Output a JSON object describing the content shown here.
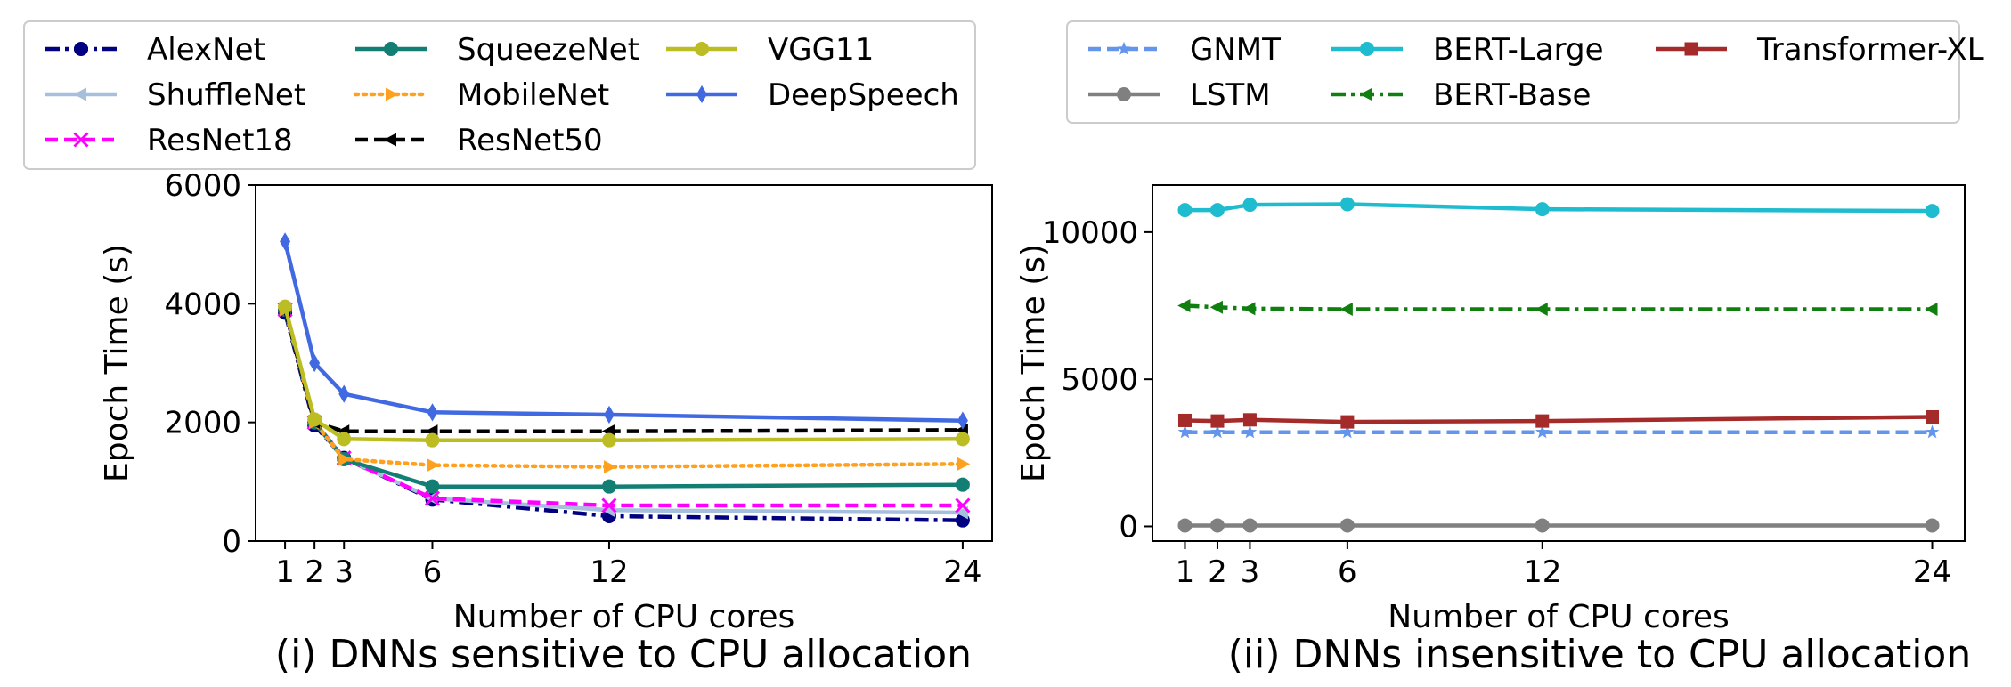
{
  "chart_data": [
    {
      "type": "line",
      "caption": "(i) DNNs sensitive to CPU allocation",
      "title": "",
      "xlabel": "Number of CPU cores",
      "ylabel": "Epoch Time (s)",
      "x": [
        1,
        2,
        3,
        6,
        12,
        24
      ],
      "xticks": [
        1,
        2,
        3,
        6,
        12,
        24
      ],
      "xlim": [
        0,
        25
      ],
      "ylim": [
        0,
        6000
      ],
      "yticks": [
        0,
        2000,
        4000,
        6000
      ],
      "grid": false,
      "legend_position": "top, above plot",
      "series": [
        {
          "name": "AlexNet",
          "color": "#000080",
          "dash": "dashdot",
          "marker": "circle",
          "values": [
            3850,
            1950,
            1400,
            700,
            420,
            350
          ]
        },
        {
          "name": "ShuffleNet",
          "color": "#a6bfdc",
          "dash": "solid",
          "marker": "triangle-left",
          "values": [
            3900,
            2000,
            1400,
            720,
            520,
            480
          ]
        },
        {
          "name": "ResNet18",
          "color": "#ff00ff",
          "dash": "dashed",
          "marker": "x",
          "values": [
            3900,
            2000,
            1400,
            720,
            600,
            600
          ]
        },
        {
          "name": "SqueezeNet",
          "color": "#137f74",
          "dash": "solid",
          "marker": "circle",
          "values": [
            3900,
            2000,
            1380,
            920,
            920,
            950
          ]
        },
        {
          "name": "MobileNet",
          "color": "#ffa01e",
          "dash": "dotted",
          "marker": "triangle-right",
          "values": [
            3900,
            2000,
            1380,
            1280,
            1250,
            1300
          ]
        },
        {
          "name": "ResNet50",
          "color": "#000000",
          "dash": "dashed",
          "marker": "triangle-left",
          "values": [
            3900,
            2000,
            1850,
            1850,
            1850,
            1870
          ]
        },
        {
          "name": "VGG11",
          "color": "#bcbd22",
          "dash": "solid",
          "marker": "circle",
          "values": [
            3950,
            2050,
            1720,
            1700,
            1700,
            1720
          ]
        },
        {
          "name": "DeepSpeech",
          "color": "#4169e1",
          "dash": "solid",
          "marker": "diamond",
          "values": [
            5050,
            3000,
            2480,
            2170,
            2130,
            2030
          ]
        }
      ]
    },
    {
      "type": "line",
      "caption": "(ii) DNNs insensitive to CPU allocation",
      "title": "",
      "xlabel": "Number of CPU cores",
      "ylabel": "Epoch Time (s)",
      "x": [
        1,
        2,
        3,
        6,
        12,
        24
      ],
      "xticks": [
        1,
        2,
        3,
        6,
        12,
        24
      ],
      "xlim": [
        0,
        25
      ],
      "ylim": [
        -500,
        11600
      ],
      "yticks": [
        0,
        5000,
        10000
      ],
      "grid": false,
      "legend_position": "top, above plot",
      "series": [
        {
          "name": "GNMT",
          "color": "#6495ed",
          "dash": "dashed",
          "marker": "star",
          "values": [
            3200,
            3200,
            3200,
            3200,
            3200,
            3200
          ]
        },
        {
          "name": "LSTM",
          "color": "#808080",
          "dash": "solid",
          "marker": "circle",
          "values": [
            30,
            30,
            30,
            30,
            30,
            30
          ]
        },
        {
          "name": "BERT-Large",
          "color": "#1fbccf",
          "dash": "solid",
          "marker": "circle",
          "values": [
            10750,
            10750,
            10930,
            10950,
            10780,
            10720
          ]
        },
        {
          "name": "BERT-Base",
          "color": "#107f10",
          "dash": "dashdot",
          "marker": "triangle-left",
          "values": [
            7500,
            7450,
            7400,
            7380,
            7380,
            7380
          ]
        },
        {
          "name": "Transformer-XL",
          "color": "#a52a2a",
          "dash": "solid",
          "marker": "square",
          "values": [
            3600,
            3580,
            3620,
            3550,
            3580,
            3720
          ]
        }
      ]
    }
  ]
}
